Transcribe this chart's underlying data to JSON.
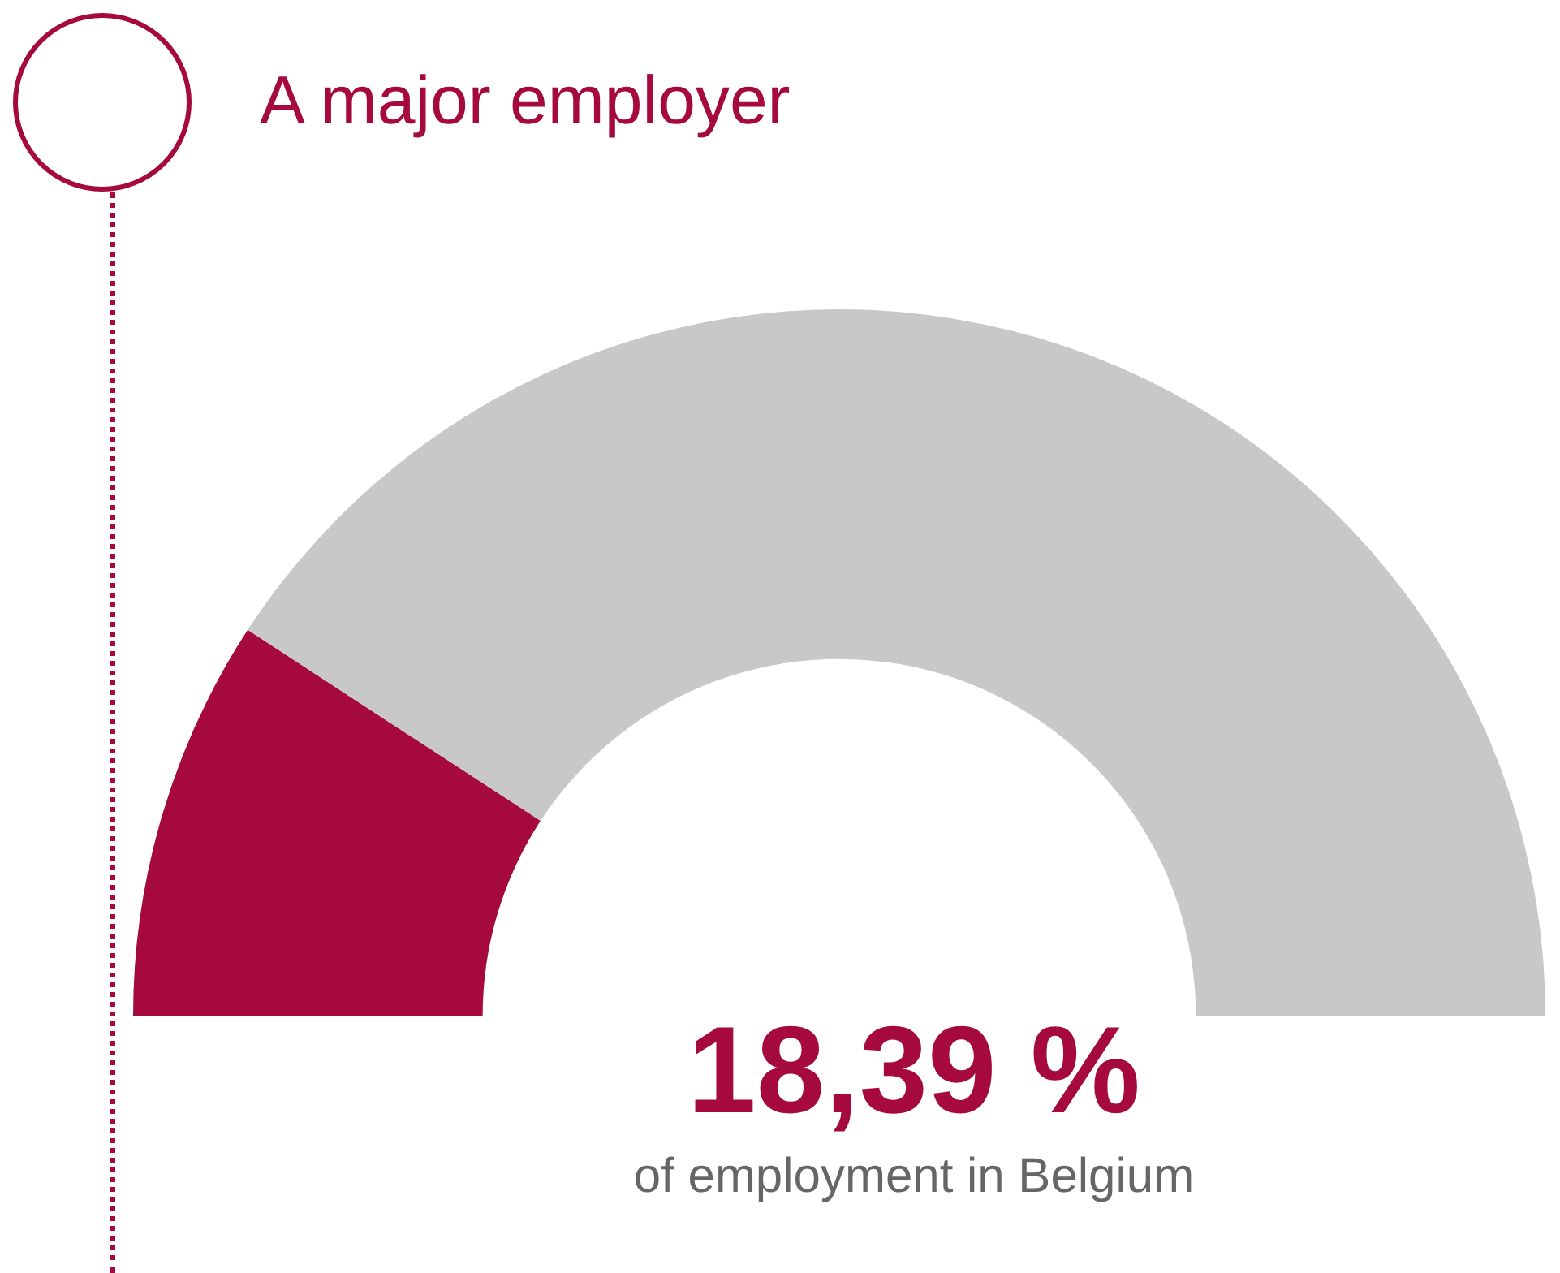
{
  "chart_data": {
    "type": "donut",
    "title": "A major employer",
    "categories": [
      null,
      null
    ],
    "values": [
      18.39,
      81.61
    ],
    "colors": [
      "#a6093d",
      "#c8c8c8"
    ],
    "annotations": [
      "18,39 %",
      "of employment in Belgium"
    ],
    "legend": false
  }
}
